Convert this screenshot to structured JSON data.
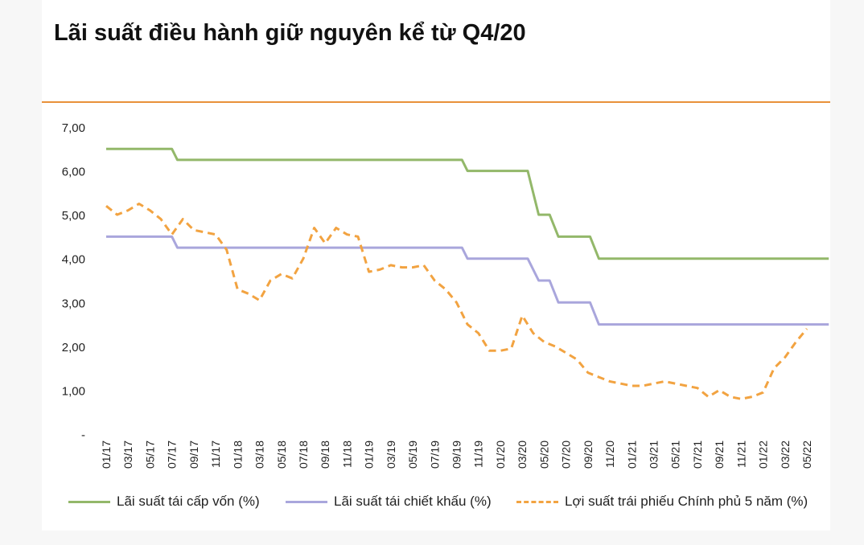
{
  "page": {
    "title": "Lãi suất điều hành giữ nguyên kể từ Q4/20"
  },
  "colors": {
    "accent_rule": "#e8913a",
    "series_refinance": "#93b86a",
    "series_discount": "#a9a6dc",
    "series_bond": "#f2a341",
    "axis_text": "#222222"
  },
  "chart_data": {
    "type": "line",
    "title": "Lãi suất điều hành giữ nguyên kể từ Q4/20",
    "xlabel": "",
    "ylabel": "",
    "ylim": [
      0,
      7
    ],
    "yticks": [
      "-",
      "1,00",
      "2,00",
      "3,00",
      "4,00",
      "5,00",
      "6,00",
      "7,00"
    ],
    "xticks": [
      "01/17",
      "03/17",
      "05/17",
      "07/17",
      "09/17",
      "11/17",
      "01/18",
      "03/18",
      "05/18",
      "07/18",
      "09/18",
      "11/18",
      "01/19",
      "03/19",
      "05/19",
      "07/19",
      "09/19",
      "11/19",
      "01/20",
      "03/20",
      "05/20",
      "07/20",
      "09/20",
      "11/20",
      "01/21",
      "03/21",
      "05/21",
      "07/21",
      "09/21",
      "11/21",
      "01/22",
      "03/22",
      "05/22"
    ],
    "grid": false,
    "legend_position": "bottom",
    "series": [
      {
        "name": "Lãi suất tái cấp vốn (%)",
        "style": "solid",
        "points": [
          [
            0,
            6.5
          ],
          [
            6,
            6.5
          ],
          [
            6.5,
            6.25
          ],
          [
            32.5,
            6.25
          ],
          [
            33,
            6.0
          ],
          [
            38.5,
            6.0
          ],
          [
            39.5,
            5.0
          ],
          [
            40.5,
            5.0
          ],
          [
            41.3,
            4.5
          ],
          [
            44.2,
            4.5
          ],
          [
            45,
            4.0
          ],
          [
            66,
            4.0
          ]
        ]
      },
      {
        "name": "Lãi suất tái chiết khấu (%)",
        "style": "solid",
        "points": [
          [
            0,
            4.5
          ],
          [
            6,
            4.5
          ],
          [
            6.5,
            4.25
          ],
          [
            32.5,
            4.25
          ],
          [
            33,
            4.0
          ],
          [
            38.5,
            4.0
          ],
          [
            39.5,
            3.5
          ],
          [
            40.5,
            3.5
          ],
          [
            41.3,
            3.0
          ],
          [
            44.2,
            3.0
          ],
          [
            45,
            2.5
          ],
          [
            66,
            2.5
          ]
        ]
      },
      {
        "name": "Lợi suất trái phiếu Chính phủ 5 năm (%)",
        "style": "dashed",
        "points": [
          [
            0,
            5.2
          ],
          [
            1,
            5.0
          ],
          [
            2,
            5.1
          ],
          [
            3,
            5.25
          ],
          [
            4,
            5.1
          ],
          [
            5,
            4.9
          ],
          [
            6,
            4.55
          ],
          [
            7,
            4.9
          ],
          [
            8,
            4.65
          ],
          [
            9,
            4.6
          ],
          [
            10,
            4.55
          ],
          [
            11,
            4.2
          ],
          [
            12,
            3.3
          ],
          [
            13,
            3.2
          ],
          [
            14,
            3.05
          ],
          [
            15,
            3.5
          ],
          [
            16,
            3.65
          ],
          [
            17,
            3.55
          ],
          [
            18,
            4.0
          ],
          [
            19,
            4.7
          ],
          [
            20,
            4.35
          ],
          [
            21,
            4.7
          ],
          [
            22,
            4.55
          ],
          [
            23,
            4.5
          ],
          [
            24,
            3.7
          ],
          [
            25,
            3.75
          ],
          [
            26,
            3.85
          ],
          [
            27,
            3.8
          ],
          [
            28,
            3.8
          ],
          [
            29,
            3.85
          ],
          [
            30,
            3.5
          ],
          [
            31,
            3.3
          ],
          [
            32,
            3.0
          ],
          [
            33,
            2.5
          ],
          [
            34,
            2.3
          ],
          [
            35,
            1.9
          ],
          [
            36,
            1.9
          ],
          [
            37,
            1.95
          ],
          [
            38,
            2.7
          ],
          [
            39,
            2.3
          ],
          [
            40,
            2.1
          ],
          [
            41,
            2.0
          ],
          [
            42,
            1.85
          ],
          [
            43,
            1.7
          ],
          [
            44,
            1.4
          ],
          [
            45,
            1.3
          ],
          [
            46,
            1.2
          ],
          [
            47,
            1.15
          ],
          [
            48,
            1.1
          ],
          [
            49,
            1.1
          ],
          [
            50,
            1.15
          ],
          [
            51,
            1.2
          ],
          [
            52,
            1.15
          ],
          [
            53,
            1.1
          ],
          [
            54,
            1.05
          ],
          [
            55,
            0.85
          ],
          [
            56,
            1.0
          ],
          [
            57,
            0.85
          ],
          [
            58,
            0.8
          ],
          [
            59,
            0.85
          ],
          [
            60,
            0.95
          ],
          [
            61,
            1.5
          ],
          [
            62,
            1.75
          ],
          [
            63,
            2.1
          ],
          [
            64,
            2.4
          ]
        ]
      }
    ]
  }
}
